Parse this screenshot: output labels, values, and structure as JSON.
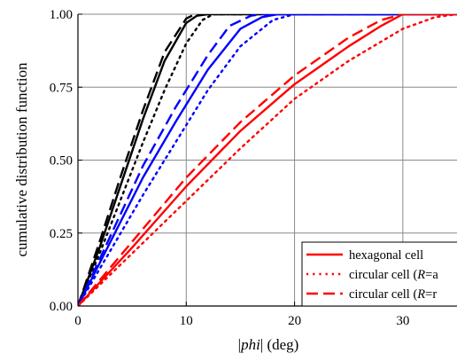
{
  "chart_data": {
    "type": "line",
    "xlabel_parts": [
      "|",
      "phi",
      "| (deg)"
    ],
    "ylabel": "cumulative distribution function",
    "xlim": [
      0,
      35
    ],
    "ylim": [
      0,
      1
    ],
    "xticks": [
      0,
      10,
      20,
      30
    ],
    "yticks": [
      0.0,
      0.25,
      0.5,
      0.75,
      1.0
    ],
    "ytick_labels": [
      "0.00",
      "0.25",
      "0.50",
      "0.75",
      "1.00"
    ],
    "grid": true,
    "legend_position": "bottom-right",
    "legend": [
      {
        "style": "solid",
        "text_before": "hexagonal cell",
        "italic": "",
        "text_after": ""
      },
      {
        "style": "dotted",
        "text_before": "circular cell (",
        "italic": "R",
        "text_after": "=a"
      },
      {
        "style": "dashed",
        "text_before": "circular cell (",
        "italic": "R",
        "text_after": "=r"
      }
    ],
    "series": [
      {
        "color": "#000000",
        "style": "solid",
        "points": [
          [
            0,
            0
          ],
          [
            2,
            0.2
          ],
          [
            4,
            0.42
          ],
          [
            6,
            0.64
          ],
          [
            8,
            0.84
          ],
          [
            10,
            0.97
          ],
          [
            11,
            0.995
          ],
          [
            12,
            1.0
          ],
          [
            35,
            1.0
          ]
        ]
      },
      {
        "color": "#000000",
        "style": "dotted",
        "points": [
          [
            0,
            0
          ],
          [
            2,
            0.18
          ],
          [
            4,
            0.37
          ],
          [
            6,
            0.56
          ],
          [
            8,
            0.74
          ],
          [
            10,
            0.9
          ],
          [
            11.5,
            0.98
          ],
          [
            12.5,
            1.0
          ],
          [
            35,
            1.0
          ]
        ]
      },
      {
        "color": "#000000",
        "style": "dashed",
        "points": [
          [
            0,
            0
          ],
          [
            2,
            0.22
          ],
          [
            4,
            0.45
          ],
          [
            6,
            0.67
          ],
          [
            8,
            0.87
          ],
          [
            10,
            0.985
          ],
          [
            10.8,
            1.0
          ],
          [
            35,
            1.0
          ]
        ]
      },
      {
        "color": "#0000ff",
        "style": "solid",
        "points": [
          [
            0,
            0
          ],
          [
            3,
            0.22
          ],
          [
            6,
            0.44
          ],
          [
            9,
            0.63
          ],
          [
            12,
            0.81
          ],
          [
            15,
            0.95
          ],
          [
            17,
            0.99
          ],
          [
            18.5,
            1.0
          ],
          [
            35,
            1.0
          ]
        ]
      },
      {
        "color": "#0000ff",
        "style": "dotted",
        "points": [
          [
            0,
            0
          ],
          [
            3,
            0.19
          ],
          [
            6,
            0.38
          ],
          [
            9,
            0.56
          ],
          [
            12,
            0.74
          ],
          [
            15,
            0.89
          ],
          [
            18,
            0.98
          ],
          [
            20,
            1.0
          ],
          [
            35,
            1.0
          ]
        ]
      },
      {
        "color": "#0000ff",
        "style": "dashed",
        "points": [
          [
            0,
            0
          ],
          [
            3,
            0.24
          ],
          [
            6,
            0.48
          ],
          [
            9,
            0.68
          ],
          [
            12,
            0.86
          ],
          [
            14,
            0.96
          ],
          [
            16,
            0.995
          ],
          [
            17,
            1.0
          ],
          [
            35,
            1.0
          ]
        ]
      },
      {
        "color": "#ff0000",
        "style": "solid",
        "points": [
          [
            0,
            0
          ],
          [
            5,
            0.2
          ],
          [
            10,
            0.41
          ],
          [
            15,
            0.6
          ],
          [
            20,
            0.76
          ],
          [
            25,
            0.89
          ],
          [
            28,
            0.96
          ],
          [
            30,
            1.0
          ],
          [
            35,
            1.0
          ]
        ]
      },
      {
        "color": "#ff0000",
        "style": "dotted",
        "points": [
          [
            0,
            0
          ],
          [
            5,
            0.18
          ],
          [
            10,
            0.36
          ],
          [
            15,
            0.54
          ],
          [
            20,
            0.71
          ],
          [
            25,
            0.84
          ],
          [
            30,
            0.95
          ],
          [
            33,
            0.99
          ],
          [
            35,
            1.0
          ]
        ]
      },
      {
        "color": "#ff0000",
        "style": "dashed",
        "points": [
          [
            0,
            0
          ],
          [
            5,
            0.22
          ],
          [
            10,
            0.44
          ],
          [
            15,
            0.63
          ],
          [
            20,
            0.79
          ],
          [
            25,
            0.92
          ],
          [
            28,
            0.98
          ],
          [
            30,
            1.0
          ],
          [
            35,
            1.0
          ]
        ]
      }
    ]
  }
}
